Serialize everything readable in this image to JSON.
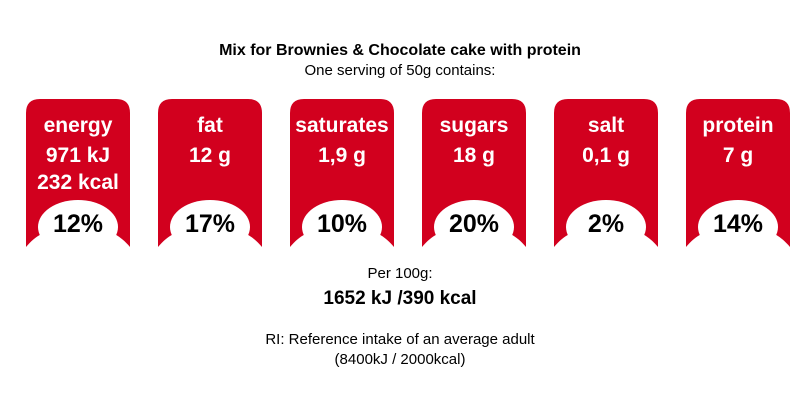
{
  "title": "Mix for Brownies & Chocolate cake with protein",
  "subtitle": "One serving of 50g contains:",
  "accent_color": "#d2001e",
  "badges": [
    {
      "label": "energy",
      "value1": "971 kJ",
      "value2": "232 kcal",
      "percent": "12%"
    },
    {
      "label": "fat",
      "value1": "12 g",
      "value2": "",
      "percent": "17%"
    },
    {
      "label": "saturates",
      "value1": "1,9 g",
      "value2": "",
      "percent": "10%"
    },
    {
      "label": "sugars",
      "value1": "18 g",
      "value2": "",
      "percent": "20%"
    },
    {
      "label": "salt",
      "value1": "0,1 g",
      "value2": "",
      "percent": "2%"
    },
    {
      "label": "protein",
      "value1": "7 g",
      "value2": "",
      "percent": "14%"
    }
  ],
  "per100": {
    "label": "Per 100g:",
    "value": "1652 kJ /390 kcal"
  },
  "ri": {
    "line1": "RI: Reference intake of an average adult",
    "line2": "(8400kJ / 2000kcal)"
  }
}
